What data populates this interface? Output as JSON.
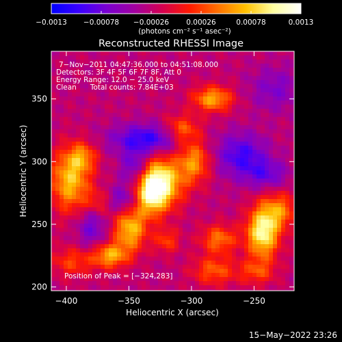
{
  "chart_data": {
    "type": "heatmap",
    "title": "Reconstructed RHESSI Image",
    "xlabel": "Heliocentric X (arcsec)",
    "ylabel": "Heliocentric Y (arcsec)",
    "xlim": [
      -412,
      -218
    ],
    "ylim": [
      197,
      388
    ],
    "x_ticks": [
      -400,
      -350,
      -300,
      -250
    ],
    "x_tick_labels": [
      "−400",
      "−350",
      "−300",
      "−250"
    ],
    "y_ticks": [
      200,
      250,
      300,
      350
    ],
    "y_tick_labels": [
      "200",
      "250",
      "300",
      "350"
    ],
    "colorbar": {
      "range": [
        -0.0013,
        0.0013
      ],
      "ticks": [
        -0.0013,
        -0.00078,
        -0.00026,
        0.00026,
        0.00078,
        0.0013
      ],
      "tick_labels": [
        "−0.0013",
        "−0.00078",
        "−0.00026",
        "0.00026",
        "0.00078",
        "0.0013"
      ],
      "unit_label": "(photons cm⁻² s⁻¹ asec⁻²)",
      "colormap": [
        "#0000ff",
        "#3a00ff",
        "#7a00d0",
        "#a000a0",
        "#d40050",
        "#ff1a00",
        "#ff7000",
        "#ffc000",
        "#ffffa0",
        "#ffffff"
      ]
    },
    "info_lines": [
      "7−Nov−2011 04:47:36.000 to 04:51:08.000",
      "Detectors: 3F 4F 5F 6F 7F 8F, Att 0",
      "Energy Range: 12.0 − 25.0 keV",
      "Clean      Total counts: 7.84E+03"
    ],
    "peak_label": "Position of Peak = [−324,283]",
    "peak_position": [
      -324,
      283
    ],
    "blobs": [
      {
        "x": -325,
        "y": 283,
        "sx": 12,
        "sy": 14,
        "amp": 0.00135
      },
      {
        "x": -333,
        "y": 273,
        "sx": 8,
        "sy": 12,
        "amp": 0.0008
      },
      {
        "x": -243,
        "y": 243,
        "sx": 9,
        "sy": 14,
        "amp": 0.0013
      },
      {
        "x": -230,
        "y": 261,
        "sx": 10,
        "sy": 10,
        "amp": 0.0007
      },
      {
        "x": -349,
        "y": 246,
        "sx": 9,
        "sy": 12,
        "amp": 0.001
      },
      {
        "x": -397,
        "y": 285,
        "sx": 11,
        "sy": 17,
        "amp": 0.001
      },
      {
        "x": -387,
        "y": 304,
        "sx": 8,
        "sy": 8,
        "amp": 0.0006
      },
      {
        "x": -283,
        "y": 350,
        "sx": 11,
        "sy": 7,
        "amp": 0.0009
      },
      {
        "x": -298,
        "y": 300,
        "sx": 9,
        "sy": 12,
        "amp": 0.0008
      },
      {
        "x": -308,
        "y": 325,
        "sx": 10,
        "sy": 8,
        "amp": 0.0007
      },
      {
        "x": -278,
        "y": 238,
        "sx": 10,
        "sy": 8,
        "amp": 0.0007
      },
      {
        "x": -282,
        "y": 213,
        "sx": 12,
        "sy": 8,
        "amp": 0.0006
      },
      {
        "x": -365,
        "y": 225,
        "sx": 10,
        "sy": 7,
        "amp": 0.0009
      },
      {
        "x": -395,
        "y": 220,
        "sx": 12,
        "sy": 8,
        "amp": 0.0005
      },
      {
        "x": -248,
        "y": 212,
        "sx": 10,
        "sy": 7,
        "amp": 0.0005
      },
      {
        "x": -375,
        "y": 267,
        "sx": 8,
        "sy": 8,
        "amp": 0.0004
      },
      {
        "x": -320,
        "y": 237,
        "sx": 7,
        "sy": 7,
        "amp": 0.0005
      },
      {
        "x": -335,
        "y": 318,
        "sx": 20,
        "sy": 8,
        "amp": -0.0008
      },
      {
        "x": -345,
        "y": 296,
        "sx": 8,
        "sy": 10,
        "amp": -0.0006
      },
      {
        "x": -355,
        "y": 270,
        "sx": 9,
        "sy": 8,
        "amp": -0.0005
      },
      {
        "x": -260,
        "y": 305,
        "sx": 14,
        "sy": 12,
        "amp": -0.0007
      },
      {
        "x": -240,
        "y": 290,
        "sx": 12,
        "sy": 8,
        "amp": -0.0005
      },
      {
        "x": -380,
        "y": 248,
        "sx": 8,
        "sy": 12,
        "amp": -0.0005
      },
      {
        "x": -233,
        "y": 358,
        "sx": 14,
        "sy": 12,
        "amp": -0.0004
      }
    ],
    "grid": false
  },
  "footer": {
    "timestamp": "15−May−2022 23:26"
  }
}
